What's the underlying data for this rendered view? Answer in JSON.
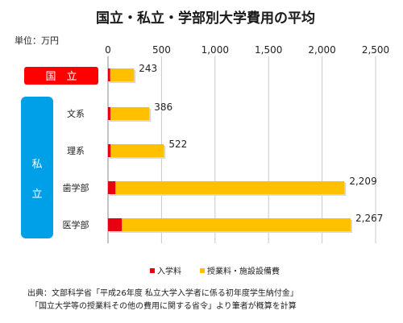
{
  "chart_data": {
    "type": "bar",
    "orientation": "horizontal",
    "stacked": true,
    "title": "国立・私立・学部別大学費用の平均",
    "unit_label": "単位：万円",
    "groups": [
      {
        "label": "国　立",
        "color": "#ff0000"
      },
      {
        "label": "私　立",
        "color": "#00a0e9"
      }
    ],
    "categories": [
      "",
      "文系",
      "理系",
      "歯学部",
      "医学部"
    ],
    "category_group": [
      0,
      1,
      1,
      1,
      1
    ],
    "series": [
      {
        "name": "入学料",
        "color": "#e60012",
        "values": [
          21,
          23,
          25,
          70,
          130
        ]
      },
      {
        "name": "授業料・施設設備費",
        "color": "#ffc000",
        "values": [
          222,
          363,
          497,
          2139,
          2137
        ]
      }
    ],
    "totals": [
      243,
      386,
      522,
      2209,
      2267
    ],
    "total_labels": [
      "243",
      "386",
      "522",
      "2,209",
      "2,267"
    ],
    "xlim": [
      0,
      2500
    ],
    "xticks": [
      0,
      500,
      1000,
      1500,
      2000,
      2500
    ],
    "xtick_labels": [
      "0",
      "500",
      "1,000",
      "1,500",
      "2,000",
      "2,500"
    ],
    "grid": true,
    "legend_position": "bottom"
  },
  "footer": {
    "line1": "出典：文部科学省「平成26年度 私立大学入学者に係る初年度学生納付金」",
    "line2": "「国立大学等の授業料その他の費用に関する省令」より筆者が概算を計算"
  }
}
